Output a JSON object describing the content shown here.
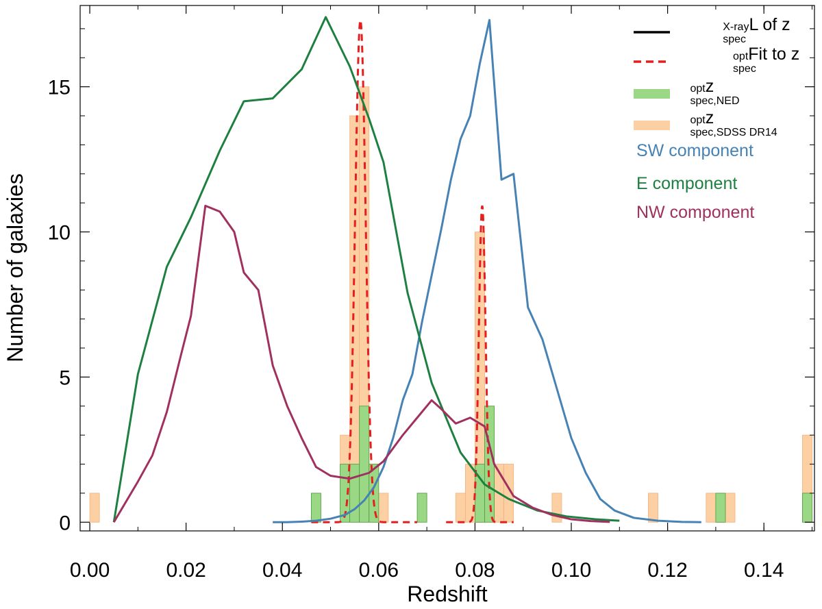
{
  "chart_data": {
    "type": "histogram_with_lines",
    "xlabel": "Redshift",
    "ylabel": "Number of galaxies",
    "xlim": [
      -0.002,
      0.1505
    ],
    "ylim": [
      -0.3,
      17.8
    ],
    "x_ticks": [
      0.0,
      0.02,
      0.04,
      0.06,
      0.08,
      0.1,
      0.12,
      0.14
    ],
    "x_tick_labels": [
      "0.00",
      "0.02",
      "0.04",
      "0.06",
      "0.08",
      "0.10",
      "0.12",
      "0.14"
    ],
    "y_ticks": [
      0,
      5,
      10,
      15
    ],
    "y_tick_labels": [
      "0",
      "5",
      "10",
      "15"
    ],
    "bin_width": 0.002,
    "colors": {
      "sdss": "#fdd0a4",
      "sdss_edge": "#f2b07c",
      "ned": "#9bd885",
      "ned_edge": "#4c9a3c",
      "fit": "#e61e1e",
      "sw": "#4682b4",
      "e": "#1e8040",
      "nw": "#a0305e",
      "legend_line": "#000000"
    },
    "legend": {
      "placement": "top-right",
      "entries": [
        {
          "type": "line",
          "base": "L of z",
          "sup": "X-ray",
          "sub": "spec"
        },
        {
          "type": "dashed",
          "base": "Fit to z",
          "sup": "opt",
          "sub": "spec"
        },
        {
          "type": "bar_ned",
          "base": "z",
          "sup": "opt",
          "sub": "spec,NED"
        },
        {
          "type": "bar_sdss",
          "base": "z",
          "sup": "opt",
          "sub": "spec,SDSS DR14"
        }
      ],
      "components": [
        {
          "label": "SW component",
          "series": "sw"
        },
        {
          "label": "E component",
          "series": "e"
        },
        {
          "label": "NW component",
          "series": "nw"
        }
      ]
    },
    "histogram_sdss": [
      {
        "x": 0.0,
        "count": 1
      },
      {
        "x": 0.052,
        "count": 3
      },
      {
        "x": 0.054,
        "count": 14
      },
      {
        "x": 0.056,
        "count": 15
      },
      {
        "x": 0.058,
        "count": 2
      },
      {
        "x": 0.06,
        "count": 1
      },
      {
        "x": 0.076,
        "count": 1
      },
      {
        "x": 0.078,
        "count": 2
      },
      {
        "x": 0.08,
        "count": 10
      },
      {
        "x": 0.082,
        "count": 4
      },
      {
        "x": 0.084,
        "count": 2
      },
      {
        "x": 0.086,
        "count": 2
      },
      {
        "x": 0.096,
        "count": 1
      },
      {
        "x": 0.116,
        "count": 1
      },
      {
        "x": 0.128,
        "count": 1
      },
      {
        "x": 0.13,
        "count": 1
      },
      {
        "x": 0.132,
        "count": 1
      },
      {
        "x": 0.148,
        "count": 3
      }
    ],
    "histogram_ned": [
      {
        "x": 0.046,
        "count": 1
      },
      {
        "x": 0.052,
        "count": 2
      },
      {
        "x": 0.054,
        "count": 2
      },
      {
        "x": 0.056,
        "count": 4
      },
      {
        "x": 0.058,
        "count": 2
      },
      {
        "x": 0.068,
        "count": 1
      },
      {
        "x": 0.08,
        "count": 2
      },
      {
        "x": 0.082,
        "count": 4
      },
      {
        "x": 0.13,
        "count": 1
      },
      {
        "x": 0.148,
        "count": 1
      }
    ],
    "fit_curves": [
      {
        "center": 0.0562,
        "amplitude": 17.3,
        "sigma": 0.0011,
        "x_range": [
          0.046,
          0.068
        ]
      },
      {
        "center": 0.0815,
        "amplitude": 10.9,
        "sigma": 0.0007,
        "x_range": [
          0.074,
          0.088
        ]
      }
    ],
    "series": [
      {
        "name": "SW component",
        "key": "sw",
        "x": [
          0.038,
          0.041,
          0.044,
          0.047,
          0.05,
          0.053,
          0.055,
          0.057,
          0.059,
          0.061,
          0.063,
          0.065,
          0.067,
          0.069,
          0.071,
          0.073,
          0.075,
          0.077,
          0.079,
          0.081,
          0.083,
          0.0855,
          0.088,
          0.091,
          0.094,
          0.097,
          0.1,
          0.103,
          0.106,
          0.109,
          0.113,
          0.118,
          0.123,
          0.127
        ],
        "y": [
          0,
          0,
          0.02,
          0.05,
          0.12,
          0.25,
          0.45,
          0.75,
          1.2,
          1.9,
          2.9,
          4.2,
          5.1,
          6.9,
          8.5,
          10.1,
          11.8,
          13.2,
          14.0,
          15.8,
          17.3,
          11.8,
          12.0,
          7.4,
          6.3,
          4.6,
          2.9,
          1.7,
          0.8,
          0.4,
          0.15,
          0.05,
          0.01,
          0
        ]
      },
      {
        "name": "E component",
        "key": "e",
        "x": [
          0.005,
          0.01,
          0.016,
          0.021,
          0.027,
          0.032,
          0.038,
          0.044,
          0.049,
          0.054,
          0.058,
          0.061,
          0.066,
          0.071,
          0.077,
          0.082,
          0.087,
          0.093,
          0.099,
          0.105,
          0.11
        ],
        "y": [
          0,
          5.1,
          8.8,
          10.5,
          12.8,
          14.5,
          14.6,
          15.6,
          17.4,
          15.7,
          13.9,
          12.4,
          7.9,
          4.8,
          2.4,
          1.3,
          0.8,
          0.4,
          0.2,
          0.1,
          0.05
        ]
      },
      {
        "name": "NW component",
        "key": "nw",
        "x": [
          0.005,
          0.01,
          0.013,
          0.016,
          0.019,
          0.021,
          0.024,
          0.027,
          0.03,
          0.032,
          0.035,
          0.038,
          0.041,
          0.044,
          0.047,
          0.05,
          0.054,
          0.058,
          0.061,
          0.065,
          0.069,
          0.071,
          0.073,
          0.076,
          0.079,
          0.082,
          0.084,
          0.088,
          0.092,
          0.096,
          0.1,
          0.104,
          0.108
        ],
        "y": [
          0,
          1.4,
          2.3,
          3.8,
          5.8,
          7.1,
          10.9,
          10.7,
          10.0,
          8.6,
          8.0,
          5.4,
          4.0,
          2.9,
          1.9,
          1.6,
          1.5,
          1.7,
          2.1,
          3.0,
          3.8,
          4.2,
          3.9,
          3.4,
          3.6,
          3.3,
          2.0,
          0.9,
          0.5,
          0.25,
          0.1,
          0.04,
          0.01
        ]
      }
    ]
  }
}
